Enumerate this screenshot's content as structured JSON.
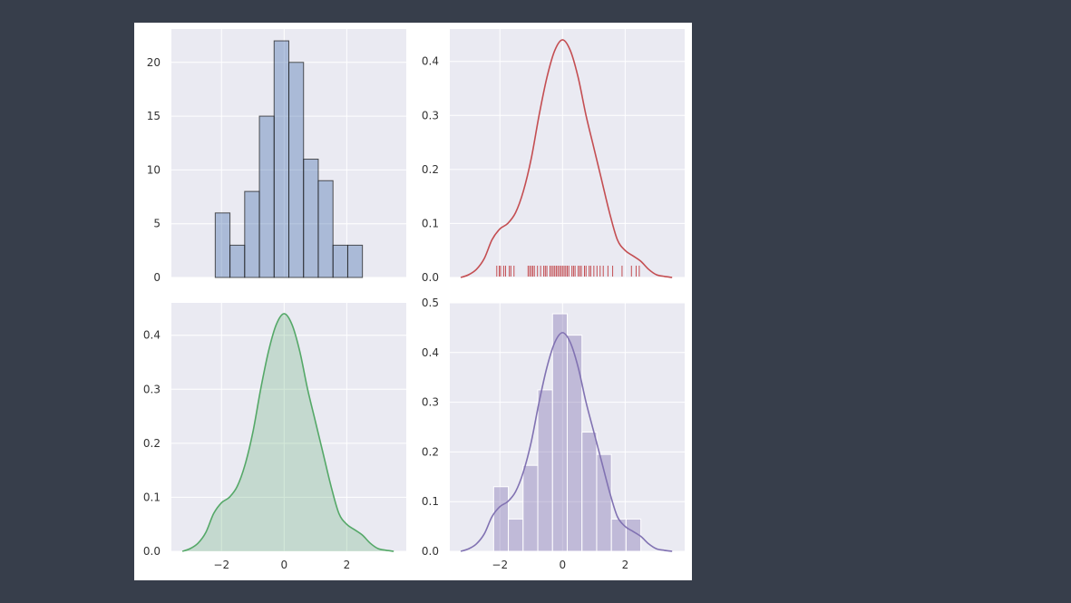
{
  "page": {
    "background": "#373e4b",
    "figure_background": "#ffffff",
    "axes_background": "#eaeaf2",
    "grid_color": "#ffffff"
  },
  "chart_data": [
    {
      "id": "hist-counts",
      "type": "bar",
      "title": "",
      "xlabel": "",
      "ylabel": "",
      "color": "#4c72b0",
      "bar_alpha": 0.4,
      "edge_color": "#1f1f1f",
      "bins": [
        {
          "x0": -2.2,
          "x1": -1.73,
          "count": 6
        },
        {
          "x0": -1.73,
          "x1": -1.26,
          "count": 3
        },
        {
          "x0": -1.26,
          "x1": -0.79,
          "count": 8
        },
        {
          "x0": -0.79,
          "x1": -0.32,
          "count": 15
        },
        {
          "x0": -0.32,
          "x1": 0.15,
          "count": 22
        },
        {
          "x0": 0.15,
          "x1": 0.62,
          "count": 20
        },
        {
          "x0": 0.62,
          "x1": 1.09,
          "count": 11
        },
        {
          "x0": 1.09,
          "x1": 1.56,
          "count": 9
        },
        {
          "x0": 1.56,
          "x1": 2.03,
          "count": 3
        },
        {
          "x0": 2.03,
          "x1": 2.5,
          "count": 3
        }
      ],
      "xlim": [
        -3.6,
        3.9
      ],
      "ylim": [
        0,
        23.1
      ],
      "xticks": [
        -2,
        0,
        2
      ],
      "yticks": [
        0,
        5,
        10,
        15,
        20
      ],
      "ytick_labels": [
        "0",
        "5",
        "10",
        "15",
        "20"
      ],
      "show_xtick_labels": false,
      "grid": true
    },
    {
      "id": "kde-rug",
      "type": "line",
      "title": "",
      "xlabel": "",
      "ylabel": "",
      "color": "#c44e52",
      "series": [
        {
          "x": [
            -3.25,
            -3.0,
            -2.75,
            -2.5,
            -2.25,
            -2.0,
            -1.75,
            -1.5,
            -1.25,
            -1.0,
            -0.75,
            -0.5,
            -0.25,
            0.0,
            0.25,
            0.5,
            0.75,
            1.0,
            1.25,
            1.5,
            1.75,
            2.0,
            2.25,
            2.5,
            2.75,
            3.0,
            3.25,
            3.5
          ],
          "y": [
            0.0,
            0.005,
            0.015,
            0.035,
            0.07,
            0.09,
            0.1,
            0.12,
            0.16,
            0.22,
            0.3,
            0.37,
            0.42,
            0.44,
            0.42,
            0.37,
            0.3,
            0.24,
            0.18,
            0.12,
            0.07,
            0.05,
            0.04,
            0.03,
            0.015,
            0.005,
            0.002,
            0.0
          ]
        }
      ],
      "rug": [
        -2.1,
        -2.02,
        -1.98,
        -1.88,
        -1.82,
        -1.7,
        -1.65,
        -1.55,
        -1.1,
        -1.05,
        -1.0,
        -0.95,
        -0.9,
        -0.8,
        -0.7,
        -0.6,
        -0.55,
        -0.5,
        -0.4,
        -0.35,
        -0.3,
        -0.25,
        -0.2,
        -0.15,
        -0.1,
        -0.05,
        0.0,
        0.05,
        0.1,
        0.15,
        0.2,
        0.3,
        0.35,
        0.4,
        0.5,
        0.55,
        0.6,
        0.7,
        0.75,
        0.85,
        0.9,
        1.0,
        1.1,
        1.2,
        1.3,
        1.45,
        1.6,
        1.9,
        2.2,
        2.35,
        2.45
      ],
      "xlim": [
        -3.6,
        3.9
      ],
      "ylim": [
        0,
        0.46
      ],
      "xticks": [
        -2,
        0,
        2
      ],
      "yticks": [
        0,
        0.1,
        0.2,
        0.3,
        0.4
      ],
      "ytick_labels": [
        "0.0",
        "0.1",
        "0.2",
        "0.3",
        "0.4"
      ],
      "show_xtick_labels": false,
      "grid": true
    },
    {
      "id": "kde-shaded",
      "type": "area",
      "title": "",
      "xlabel": "",
      "ylabel": "",
      "color": "#55a868",
      "fill_alpha": 0.25,
      "series": [
        {
          "x": [
            -3.25,
            -3.0,
            -2.75,
            -2.5,
            -2.25,
            -2.0,
            -1.75,
            -1.5,
            -1.25,
            -1.0,
            -0.75,
            -0.5,
            -0.25,
            0.0,
            0.25,
            0.5,
            0.75,
            1.0,
            1.25,
            1.5,
            1.75,
            2.0,
            2.25,
            2.5,
            2.75,
            3.0,
            3.25,
            3.5
          ],
          "y": [
            0.0,
            0.005,
            0.015,
            0.035,
            0.07,
            0.09,
            0.1,
            0.12,
            0.16,
            0.22,
            0.3,
            0.37,
            0.42,
            0.44,
            0.42,
            0.37,
            0.3,
            0.24,
            0.18,
            0.12,
            0.07,
            0.05,
            0.04,
            0.03,
            0.015,
            0.005,
            0.002,
            0.0
          ]
        }
      ],
      "xlim": [
        -3.6,
        3.9
      ],
      "ylim": [
        0,
        0.46
      ],
      "xticks": [
        -2,
        0,
        2
      ],
      "xtick_labels": [
        "−2",
        "0",
        "2"
      ],
      "yticks": [
        0,
        0.1,
        0.2,
        0.3,
        0.4
      ],
      "ytick_labels": [
        "0.0",
        "0.1",
        "0.2",
        "0.3",
        "0.4"
      ],
      "show_xtick_labels": true,
      "grid": true
    },
    {
      "id": "hist-kde",
      "type": "bar",
      "title": "",
      "xlabel": "",
      "ylabel": "",
      "color": "#8172b2",
      "bar_alpha": 0.4,
      "bins": [
        {
          "x0": -2.2,
          "x1": -1.73,
          "density": 0.13
        },
        {
          "x0": -1.73,
          "x1": -1.26,
          "density": 0.065
        },
        {
          "x0": -1.26,
          "x1": -0.79,
          "density": 0.173
        },
        {
          "x0": -0.79,
          "x1": -0.32,
          "density": 0.325
        },
        {
          "x0": -0.32,
          "x1": 0.15,
          "density": 0.478
        },
        {
          "x0": 0.15,
          "x1": 0.62,
          "density": 0.435
        },
        {
          "x0": 0.62,
          "x1": 1.09,
          "density": 0.24
        },
        {
          "x0": 1.09,
          "x1": 1.56,
          "density": 0.195
        },
        {
          "x0": 1.56,
          "x1": 2.03,
          "density": 0.065
        },
        {
          "x0": 2.03,
          "x1": 2.5,
          "density": 0.065
        }
      ],
      "series": [
        {
          "x": [
            -3.25,
            -3.0,
            -2.75,
            -2.5,
            -2.25,
            -2.0,
            -1.75,
            -1.5,
            -1.25,
            -1.0,
            -0.75,
            -0.5,
            -0.25,
            0.0,
            0.25,
            0.5,
            0.75,
            1.0,
            1.25,
            1.5,
            1.75,
            2.0,
            2.25,
            2.5,
            2.75,
            3.0,
            3.25,
            3.5
          ],
          "y": [
            0.0,
            0.005,
            0.015,
            0.035,
            0.07,
            0.09,
            0.1,
            0.12,
            0.16,
            0.22,
            0.3,
            0.37,
            0.42,
            0.44,
            0.42,
            0.37,
            0.3,
            0.24,
            0.18,
            0.12,
            0.07,
            0.05,
            0.04,
            0.03,
            0.015,
            0.005,
            0.002,
            0.0
          ]
        }
      ],
      "xlim": [
        -3.6,
        3.9
      ],
      "ylim": [
        0,
        0.5
      ],
      "xticks": [
        -2,
        0,
        2
      ],
      "xtick_labels": [
        "−2",
        "0",
        "2"
      ],
      "yticks": [
        0,
        0.1,
        0.2,
        0.3,
        0.4,
        0.5
      ],
      "ytick_labels": [
        "0.0",
        "0.1",
        "0.2",
        "0.3",
        "0.4",
        "0.5"
      ],
      "show_xtick_labels": true,
      "grid": true
    }
  ]
}
